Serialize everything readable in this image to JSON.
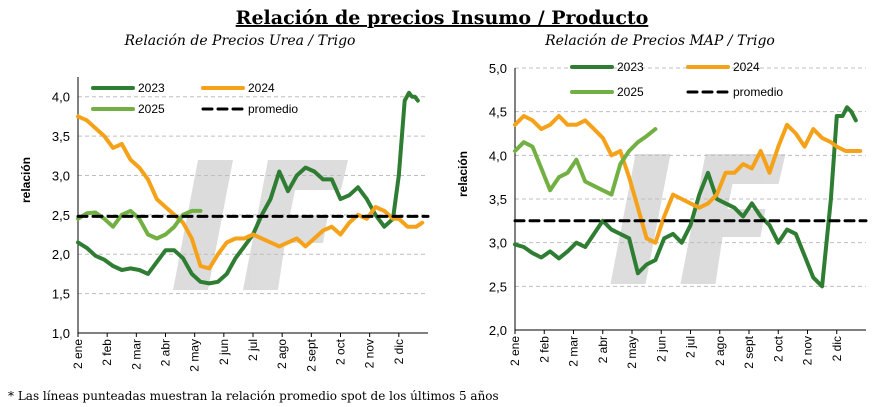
{
  "title": "Relación de precios Insumo / Producto",
  "footnote": "* Las líneas punteadas muestran la relación promedio spot de los últimos 5 años",
  "colors": {
    "s2023": "#2e7d32",
    "s2024": "#f5a21a",
    "s2025": "#72b043",
    "promedio": "#000000",
    "grid": "#bfbfbf",
    "watermark": "#d9d9d9"
  },
  "chart_data": [
    {
      "type": "line",
      "title": "Relación de Precios Urea / Trigo",
      "ylabel": "relación",
      "ylim": [
        1.0,
        4.25
      ],
      "yticks": [
        "1,0",
        "1,5",
        "2,0",
        "2,5",
        "3,0",
        "3,5",
        "4,0"
      ],
      "xlim": [
        0,
        12
      ],
      "xticks": [
        "2 ene",
        "2 feb",
        "2 mar",
        "2 abr",
        "2 may",
        "2 jun",
        "2 jul",
        "2 ago",
        "2 sept",
        "2 oct",
        "2 nov",
        "2 dic"
      ],
      "grid": "horizontal",
      "legend": "top",
      "legend_entries": [
        "2023",
        "2024",
        "2025",
        "promedio"
      ],
      "series": [
        {
          "name": "2023",
          "key": "s2023",
          "x": [
            0,
            0.3,
            0.6,
            0.9,
            1.2,
            1.5,
            1.8,
            2.1,
            2.4,
            2.7,
            3.0,
            3.3,
            3.6,
            3.9,
            4.2,
            4.5,
            4.8,
            5.1,
            5.4,
            5.7,
            6.0,
            6.3,
            6.6,
            6.9,
            7.2,
            7.5,
            7.8,
            8.1,
            8.4,
            8.7,
            9.0,
            9.3,
            9.6,
            9.9,
            10.2,
            10.5,
            10.8,
            11.0,
            11.2,
            11.35,
            11.45,
            11.55,
            11.65
          ],
          "values": [
            2.15,
            2.08,
            1.98,
            1.93,
            1.85,
            1.8,
            1.82,
            1.8,
            1.75,
            1.9,
            2.05,
            2.05,
            1.95,
            1.75,
            1.65,
            1.63,
            1.65,
            1.75,
            1.95,
            2.1,
            2.25,
            2.5,
            2.7,
            3.05,
            2.8,
            3.0,
            3.1,
            3.05,
            2.95,
            2.95,
            2.7,
            2.75,
            2.85,
            2.7,
            2.5,
            2.35,
            2.45,
            3.0,
            3.95,
            4.05,
            4.0,
            4.0,
            3.95
          ]
        },
        {
          "name": "2024",
          "key": "s2024",
          "x": [
            0,
            0.3,
            0.6,
            0.9,
            1.2,
            1.5,
            1.8,
            2.1,
            2.4,
            2.7,
            3.0,
            3.3,
            3.6,
            3.9,
            4.2,
            4.5,
            4.8,
            5.1,
            5.4,
            5.7,
            6.0,
            6.3,
            6.6,
            6.9,
            7.2,
            7.5,
            7.8,
            8.1,
            8.4,
            8.7,
            9.0,
            9.3,
            9.6,
            9.9,
            10.2,
            10.5,
            10.8,
            11.0,
            11.3,
            11.6,
            11.8
          ],
          "values": [
            3.75,
            3.7,
            3.6,
            3.5,
            3.35,
            3.4,
            3.2,
            3.1,
            2.95,
            2.7,
            2.6,
            2.5,
            2.4,
            2.2,
            1.85,
            1.82,
            2.0,
            2.15,
            2.2,
            2.2,
            2.25,
            2.2,
            2.15,
            2.1,
            2.15,
            2.2,
            2.1,
            2.2,
            2.3,
            2.35,
            2.25,
            2.4,
            2.5,
            2.45,
            2.6,
            2.55,
            2.45,
            2.45,
            2.35,
            2.35,
            2.4
          ]
        },
        {
          "name": "2025",
          "key": "s2025",
          "x": [
            0,
            0.3,
            0.6,
            0.9,
            1.2,
            1.5,
            1.8,
            2.1,
            2.4,
            2.7,
            3.0,
            3.3,
            3.6,
            3.9,
            4.2
          ],
          "values": [
            2.45,
            2.52,
            2.53,
            2.45,
            2.35,
            2.5,
            2.55,
            2.45,
            2.25,
            2.2,
            2.25,
            2.35,
            2.5,
            2.55,
            2.55
          ]
        },
        {
          "name": "promedio",
          "key": "promedio",
          "dashed": true,
          "x": [
            0,
            12
          ],
          "values": [
            2.48,
            2.48
          ]
        }
      ]
    },
    {
      "type": "line",
      "title": "Relación de Precios MAP / Trigo",
      "ylabel": "relación",
      "ylim": [
        2.0,
        5.0
      ],
      "yticks": [
        "2,0",
        "2,5",
        "3,0",
        "3,5",
        "4,0",
        "4,5",
        "5,0"
      ],
      "xlim": [
        0,
        12
      ],
      "xticks": [
        "2 ene",
        "2 feb",
        "2 mar",
        "2 abr",
        "2 may",
        "2 jun",
        "2 jul",
        "2 ago",
        "2 sept",
        "2 oct",
        "2 nov",
        "2 dic"
      ],
      "grid": "horizontal",
      "legend": "top",
      "legend_entries": [
        "2023",
        "2024",
        "2025",
        "promedio"
      ],
      "series": [
        {
          "name": "2023",
          "key": "s2023",
          "x": [
            0,
            0.3,
            0.6,
            0.9,
            1.2,
            1.5,
            1.8,
            2.1,
            2.4,
            2.7,
            3.0,
            3.3,
            3.6,
            3.9,
            4.2,
            4.5,
            4.8,
            5.1,
            5.4,
            5.7,
            6.0,
            6.3,
            6.6,
            6.9,
            7.2,
            7.5,
            7.8,
            8.1,
            8.4,
            8.7,
            9.0,
            9.3,
            9.6,
            9.9,
            10.2,
            10.5,
            10.8,
            11.0,
            11.2,
            11.35,
            11.5,
            11.65
          ],
          "values": [
            2.98,
            2.95,
            2.88,
            2.83,
            2.9,
            2.82,
            2.9,
            3.0,
            2.95,
            3.1,
            3.25,
            3.15,
            3.1,
            3.05,
            2.65,
            2.75,
            2.8,
            3.05,
            3.1,
            3.0,
            3.2,
            3.55,
            3.8,
            3.5,
            3.45,
            3.4,
            3.3,
            3.45,
            3.3,
            3.2,
            3.0,
            3.15,
            3.1,
            2.85,
            2.6,
            2.5,
            3.5,
            4.45,
            4.45,
            4.55,
            4.5,
            4.4
          ]
        },
        {
          "name": "2024",
          "key": "s2024",
          "x": [
            0,
            0.3,
            0.6,
            0.9,
            1.2,
            1.5,
            1.8,
            2.1,
            2.4,
            2.7,
            3.0,
            3.3,
            3.6,
            3.9,
            4.2,
            4.5,
            4.8,
            5.1,
            5.4,
            5.7,
            6.0,
            6.3,
            6.6,
            6.9,
            7.2,
            7.5,
            7.8,
            8.1,
            8.4,
            8.7,
            9.0,
            9.3,
            9.6,
            9.9,
            10.2,
            10.5,
            10.8,
            11.0,
            11.3,
            11.6,
            11.8
          ],
          "values": [
            4.35,
            4.45,
            4.4,
            4.3,
            4.35,
            4.45,
            4.35,
            4.35,
            4.4,
            4.3,
            4.2,
            4.0,
            4.05,
            3.75,
            3.4,
            3.05,
            3.0,
            3.3,
            3.55,
            3.5,
            3.45,
            3.4,
            3.45,
            3.55,
            3.8,
            3.8,
            3.9,
            3.85,
            4.05,
            3.8,
            4.1,
            4.35,
            4.25,
            4.1,
            4.3,
            4.2,
            4.15,
            4.1,
            4.05,
            4.05,
            4.05
          ]
        },
        {
          "name": "2025",
          "key": "s2025",
          "x": [
            0,
            0.3,
            0.6,
            0.9,
            1.2,
            1.5,
            1.8,
            2.1,
            2.4,
            2.7,
            3.0,
            3.3,
            3.6,
            3.9,
            4.2,
            4.5,
            4.8
          ],
          "values": [
            4.05,
            4.15,
            4.1,
            3.85,
            3.6,
            3.75,
            3.8,
            3.95,
            3.7,
            3.65,
            3.6,
            3.55,
            3.9,
            4.05,
            4.15,
            4.22,
            4.3
          ]
        },
        {
          "name": "promedio",
          "key": "promedio",
          "dashed": true,
          "x": [
            0,
            12
          ],
          "values": [
            3.25,
            3.25
          ]
        }
      ]
    }
  ]
}
